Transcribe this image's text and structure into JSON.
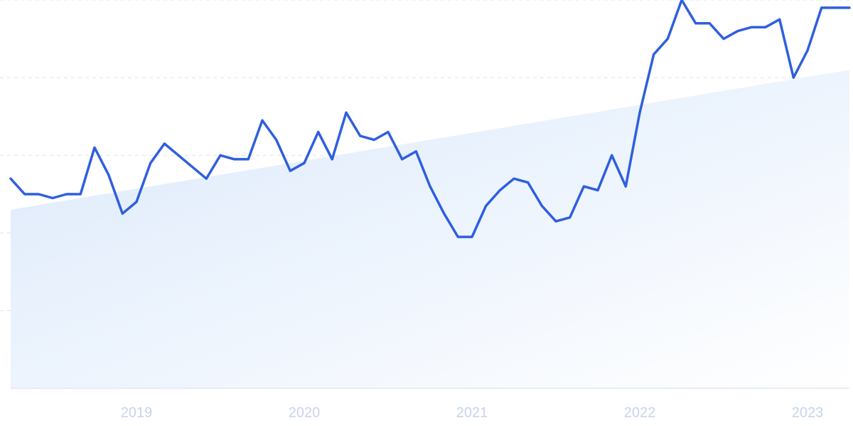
{
  "colors": {
    "line": "#2f5fde",
    "area_top": "#dbe9fb",
    "area_bottom": "#ffffff",
    "grid": "#dde3ea",
    "axis": "#e1e8f0",
    "tick_label": "#c6d3ee"
  },
  "chart_data": {
    "type": "line",
    "title": "",
    "xlabel": "",
    "ylabel": "",
    "grid": true,
    "legend": "none",
    "x_range": [
      "2018-04",
      "2023-04"
    ],
    "ylim": [
      0,
      100
    ],
    "x_ticks": [
      {
        "label": "2019",
        "date": "2019-01"
      },
      {
        "label": "2020",
        "date": "2020-01"
      },
      {
        "label": "2021",
        "date": "2021-01"
      },
      {
        "label": "2022",
        "date": "2022-01"
      },
      {
        "label": "2023",
        "date": "2023-01"
      }
    ],
    "series": [
      {
        "x": [
          "2018-04",
          "2018-05",
          "2018-06",
          "2018-07",
          "2018-08",
          "2018-09",
          "2018-10",
          "2018-11",
          "2018-12",
          "2019-01",
          "2019-02",
          "2019-03",
          "2019-04",
          "2019-05",
          "2019-06",
          "2019-07",
          "2019-08",
          "2019-09",
          "2019-10",
          "2019-11",
          "2019-12",
          "2020-01",
          "2020-02",
          "2020-03",
          "2020-04",
          "2020-05",
          "2020-06",
          "2020-07",
          "2020-08",
          "2020-09",
          "2020-10",
          "2020-11",
          "2020-12",
          "2021-01",
          "2021-02",
          "2021-03",
          "2021-04",
          "2021-05",
          "2021-06",
          "2021-07",
          "2021-08",
          "2021-09",
          "2021-10",
          "2021-11",
          "2021-12",
          "2022-01",
          "2022-02",
          "2022-03",
          "2022-04",
          "2022-05",
          "2022-06",
          "2022-07",
          "2022-08",
          "2022-09",
          "2022-10",
          "2022-11",
          "2022-12",
          "2023-01",
          "2023-02",
          "2023-03",
          "2023-04"
        ],
        "values": [
          54,
          50,
          50,
          49,
          50,
          50,
          62,
          55,
          45,
          48,
          58,
          63,
          60,
          57,
          54,
          60,
          59,
          59,
          69,
          64,
          56,
          58,
          66,
          59,
          71,
          65,
          64,
          66,
          59,
          61,
          52,
          45,
          39,
          39,
          47,
          51,
          54,
          53,
          47,
          43,
          44,
          52,
          51,
          60,
          52,
          71,
          86,
          90,
          100,
          94,
          94,
          90,
          92,
          93,
          93,
          95,
          80,
          87,
          98,
          98,
          98
        ]
      }
    ],
    "trend": {
      "values": [
        46,
        82
      ]
    }
  }
}
